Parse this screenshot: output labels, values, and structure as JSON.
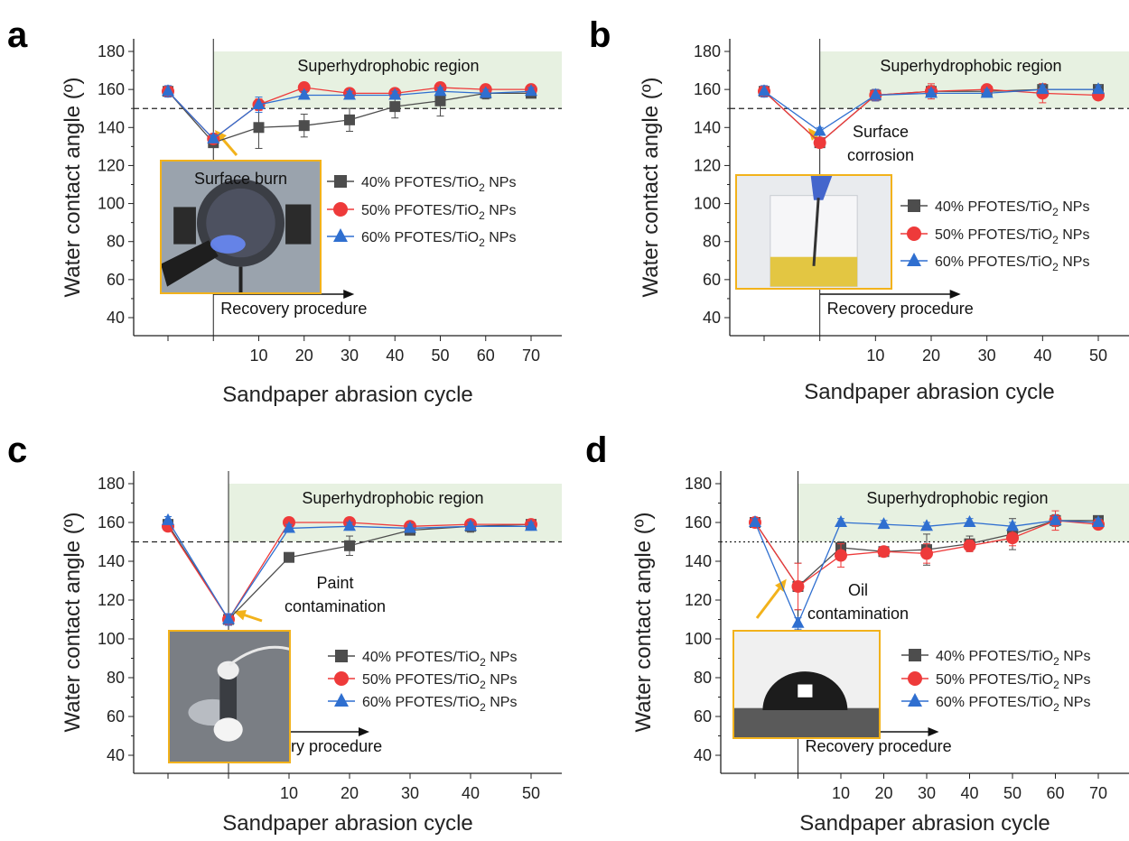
{
  "colors": {
    "series_40": "#4d4d4d",
    "series_50": "#ee3a3a",
    "series_60": "#2f6fd0",
    "region_fill": "#e7f1e1",
    "inset_border": "#f2b21b",
    "arrow": "#f2b21b"
  },
  "chart_data": [
    {
      "panel": "a",
      "type": "line",
      "xlabel": "Sandpaper abrasion cycle",
      "ylabel": "Water contact angle (º)",
      "ylim": [
        40,
        180
      ],
      "yticks": [
        40,
        60,
        80,
        100,
        120,
        140,
        160,
        180
      ],
      "x_tick_labels": [
        "",
        "",
        "10",
        "20",
        "30",
        "40",
        "50",
        "60",
        "70"
      ],
      "threshold": 150,
      "region_label": "Superhydrophobic  region",
      "recovery_label": "Recovery procedure",
      "inset_label": "Surface burn",
      "inset_picture": "flame-torch-photo",
      "legend_placement": "right",
      "series": [
        {
          "name": "40% PFOTES/TiO₂ NPs",
          "marker": "square",
          "values": [
            159,
            132,
            140,
            141,
            144,
            151,
            154,
            158,
            158
          ],
          "errors": [
            2,
            2,
            11,
            6,
            6,
            6,
            8,
            3,
            2
          ]
        },
        {
          "name": "50% PFOTES/TiO₂ NPs",
          "marker": "circle",
          "values": [
            159,
            134,
            152,
            161,
            158,
            158,
            161,
            160,
            160
          ],
          "errors": [
            2,
            2,
            3,
            2,
            2,
            2,
            2,
            2,
            2
          ]
        },
        {
          "name": "60% PFOTES/TiO₂ NPs",
          "marker": "triangle",
          "values": [
            159,
            134,
            152,
            157,
            157,
            157,
            159,
            158,
            159
          ],
          "errors": [
            3,
            2,
            4,
            2,
            2,
            2,
            2,
            2,
            2
          ]
        }
      ]
    },
    {
      "panel": "b",
      "type": "line",
      "xlabel": "Sandpaper abrasion cycle",
      "ylabel": "Water contact angle (º)",
      "ylim": [
        40,
        180
      ],
      "yticks": [
        40,
        60,
        80,
        100,
        120,
        140,
        160,
        180
      ],
      "x_tick_labels": [
        "",
        "",
        "10",
        "20",
        "30",
        "40",
        "50"
      ],
      "threshold": 150,
      "region_label": "Superhydrophobic  region",
      "recovery_label": "Recovery procedure",
      "annotation": [
        "Surface",
        "corrosion"
      ],
      "inset_picture": "beaker-corrosion-photo",
      "legend_placement": "right",
      "series": [
        {
          "name": "40% PFOTES/TiO₂ NPs",
          "marker": "square",
          "values": [
            159,
            132,
            157,
            159,
            159,
            160,
            160
          ],
          "errors": [
            2,
            2,
            3,
            3,
            2,
            3,
            2
          ]
        },
        {
          "name": "50% PFOTES/TiO₂ NPs",
          "marker": "circle",
          "values": [
            159,
            132,
            157,
            159,
            160,
            158,
            157
          ],
          "errors": [
            2,
            2,
            3,
            4,
            2,
            5,
            2
          ]
        },
        {
          "name": "60% PFOTES/TiO₂ NPs",
          "marker": "triangle",
          "values": [
            159,
            138,
            157,
            158,
            158,
            160,
            160
          ],
          "errors": [
            3,
            2,
            3,
            2,
            2,
            2,
            2
          ]
        }
      ]
    },
    {
      "panel": "c",
      "type": "line",
      "xlabel": "Sandpaper abrasion cycle",
      "ylabel": "Water contact angle (º)",
      "ylim": [
        40,
        180
      ],
      "yticks": [
        40,
        60,
        80,
        100,
        120,
        140,
        160,
        180
      ],
      "x_tick_labels": [
        "",
        "",
        "10",
        "20",
        "30",
        "40",
        "50"
      ],
      "threshold": 150,
      "region_label": "Superhydrophobic  region",
      "recovery_label": "Recovery procedure",
      "annotation": [
        "Paint",
        "contamination"
      ],
      "inset_picture": "paint-coated-sample-photo",
      "legend_placement": "right",
      "series": [
        {
          "name": "40% PFOTES/TiO₂ NPs",
          "marker": "square",
          "values": [
            159,
            110,
            142,
            148,
            156,
            158,
            159
          ],
          "errors": [
            2,
            3,
            1,
            5,
            2,
            3,
            2
          ]
        },
        {
          "name": "50% PFOTES/TiO₂ NPs",
          "marker": "circle",
          "values": [
            158,
            110,
            160,
            160,
            158,
            159,
            159
          ],
          "errors": [
            2,
            3,
            2,
            2,
            2,
            2,
            2
          ]
        },
        {
          "name": "60% PFOTES/TiO₂ NPs",
          "marker": "triangle",
          "values": [
            161,
            110,
            157,
            158,
            157,
            158,
            158
          ],
          "errors": [
            2,
            3,
            2,
            2,
            2,
            2,
            2
          ]
        }
      ]
    },
    {
      "panel": "d",
      "type": "line",
      "xlabel": "Sandpaper abrasion cycle",
      "ylabel": "Water contact angle (º)",
      "ylim": [
        40,
        180
      ],
      "yticks": [
        40,
        60,
        80,
        100,
        120,
        140,
        160,
        180
      ],
      "x_tick_labels": [
        "",
        "",
        "10",
        "20",
        "30",
        "40",
        "50",
        "60",
        "70"
      ],
      "threshold": 150,
      "threshold_style": "dotted",
      "region_label": "Superhydrophobic  region",
      "recovery_label": "Recovery procedure",
      "annotation": [
        "Oil",
        "contamination"
      ],
      "inset_picture": "water-droplet-photo",
      "legend_placement": "right",
      "series": [
        {
          "name": "40% PFOTES/TiO₂ NPs",
          "marker": "square",
          "values": [
            160,
            127,
            147,
            145,
            146,
            149,
            154,
            161,
            161
          ],
          "errors": [
            2,
            12,
            3,
            2,
            8,
            4,
            8,
            3,
            2
          ]
        },
        {
          "name": "50% PFOTES/TiO₂ NPs",
          "marker": "circle",
          "values": [
            160,
            127,
            143,
            145,
            144,
            148,
            152,
            161,
            159
          ],
          "errors": [
            2,
            12,
            6,
            2,
            5,
            3,
            4,
            5,
            2
          ]
        },
        {
          "name": "60% PFOTES/TiO₂ NPs",
          "marker": "triangle",
          "values": [
            160,
            108,
            160,
            159,
            158,
            160,
            158,
            161,
            160
          ],
          "errors": [
            2,
            3,
            2,
            2,
            2,
            2,
            2,
            2,
            2
          ]
        }
      ]
    }
  ]
}
